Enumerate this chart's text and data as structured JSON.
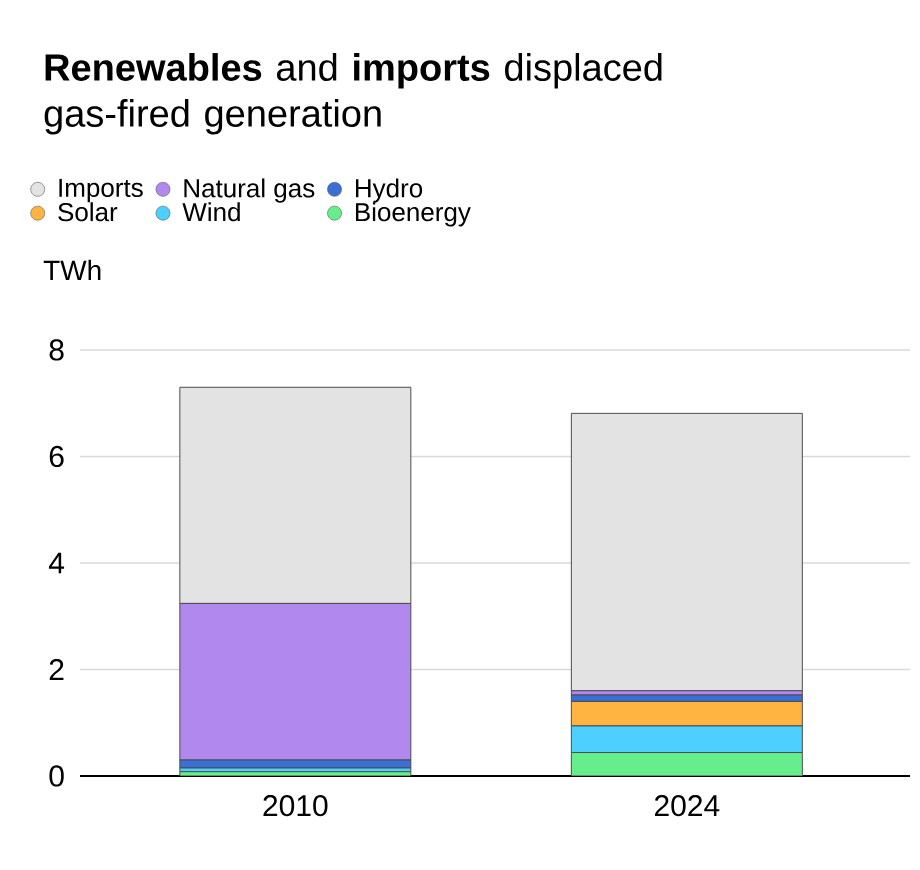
{
  "chart_data": {
    "type": "bar",
    "stacked": true,
    "title": "**Renewables** and **imports** displaced gas-fired generation",
    "ylabel": "TWh",
    "categories": [
      "2010",
      "2024"
    ],
    "series": [
      {
        "name": "Bioenergy",
        "color": "#66ee8c",
        "values": [
          0.08,
          0.44
        ]
      },
      {
        "name": "Wind",
        "color": "#4dcfff",
        "values": [
          0.07,
          0.5
        ]
      },
      {
        "name": "Solar",
        "color": "#ffb441",
        "values": [
          0.0,
          0.46
        ]
      },
      {
        "name": "Hydro",
        "color": "#3a6fd6",
        "values": [
          0.15,
          0.12
        ]
      },
      {
        "name": "Natural gas",
        "color": "#b088ee",
        "values": [
          2.94,
          0.08
        ]
      },
      {
        "name": "Imports",
        "color": "#e3e3e3",
        "values": [
          4.06,
          5.21
        ]
      }
    ],
    "ylim": [
      0,
      8
    ],
    "yticks": [
      0,
      2,
      4,
      6,
      8
    ],
    "grid": "y",
    "legend": "top"
  }
}
